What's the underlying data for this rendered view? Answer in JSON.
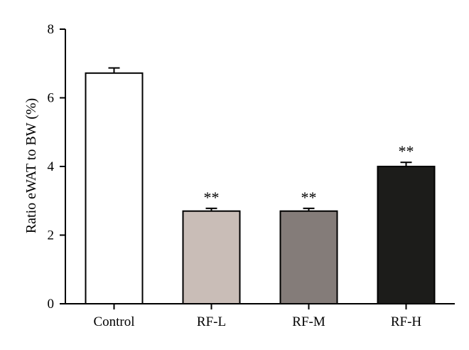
{
  "chart_data": {
    "type": "bar",
    "title": "",
    "xlabel": "",
    "ylabel": "Ratio eWAT to BW (%)",
    "ylim": [
      0,
      8
    ],
    "yticks": [
      0,
      2,
      4,
      6,
      8
    ],
    "grid": false,
    "categories": [
      "Control",
      "RF-L",
      "RF-M",
      "RF-H"
    ],
    "values": [
      6.72,
      2.7,
      2.7,
      4.0
    ],
    "errors": [
      0.15,
      0.08,
      0.08,
      0.12
    ],
    "annotations": [
      "",
      "**",
      "**",
      "**"
    ],
    "bar_colors": [
      "#ffffff",
      "#c9bdb7",
      "#847c79",
      "#1c1c1a"
    ]
  }
}
